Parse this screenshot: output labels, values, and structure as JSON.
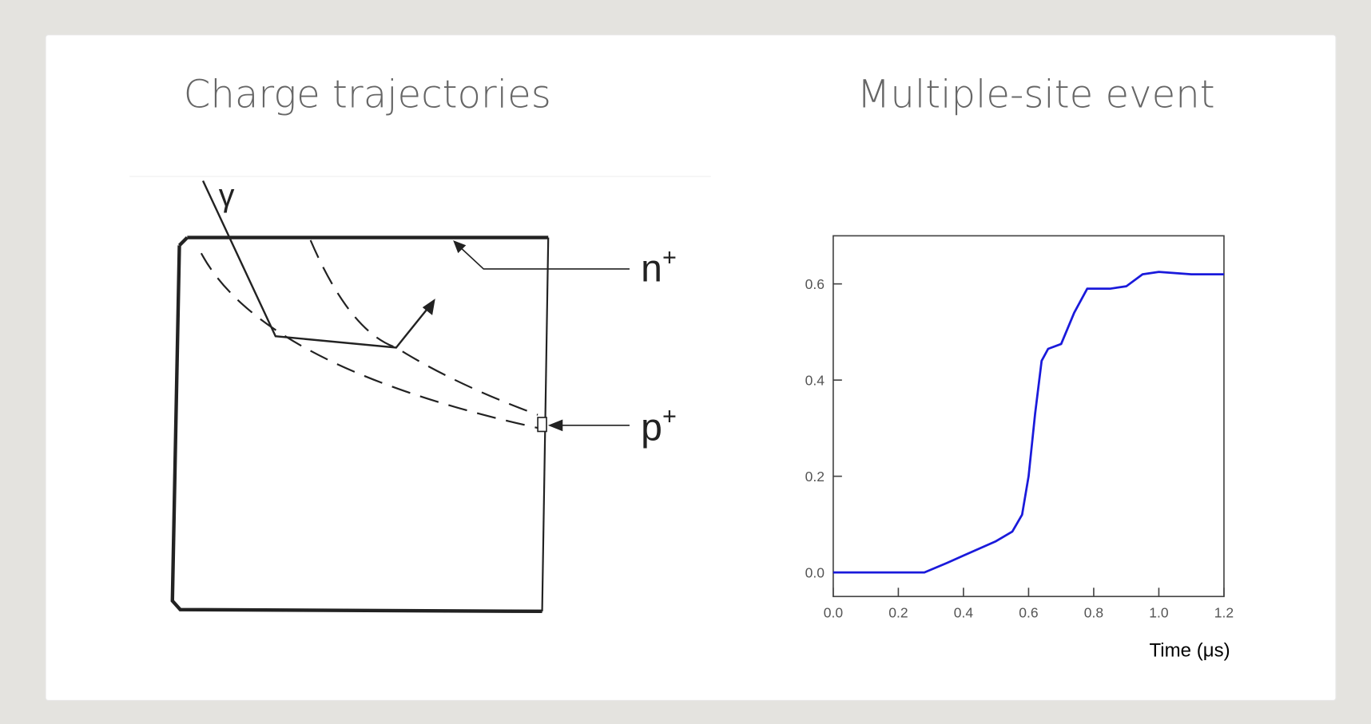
{
  "left_panel": {
    "title": "Charge trajectories",
    "labels": [
      {
        "text": "γ"
      },
      {
        "text": "n",
        "sup": "+"
      },
      {
        "text": "p",
        "sup": "+"
      }
    ]
  },
  "chart_data": {
    "type": "line",
    "title": "Multiple-site event",
    "x_label": "Time (μs)",
    "x": [
      0,
      0.1,
      0.2,
      0.28,
      0.35,
      0.4,
      0.45,
      0.5,
      0.55,
      0.58,
      0.6,
      0.62,
      0.64,
      0.66,
      0.7,
      0.74,
      0.78,
      0.85,
      0.9,
      0.95,
      1.0,
      1.1,
      1.2
    ],
    "series": [
      {
        "color": "#1a1adb",
        "values": [
          0,
          0,
          0,
          0,
          0.02,
          0.035,
          0.05,
          0.065,
          0.085,
          0.12,
          0.2,
          0.33,
          0.44,
          0.465,
          0.475,
          0.54,
          0.59,
          0.59,
          0.595,
          0.62,
          0.625,
          0.62,
          0.62
        ]
      }
    ],
    "xlim": [
      0,
      1.2
    ],
    "ylim": [
      -0.05,
      0.7
    ],
    "xticks": [
      {
        "value": 0,
        "label": "0.0"
      },
      0.2,
      0.4,
      0.6,
      0.8,
      {
        "value": 1,
        "label": "1.0"
      },
      1.2
    ],
    "yticks": [
      {
        "value": 0,
        "label": "0.0"
      },
      0.2,
      0.4,
      0.6
    ]
  }
}
